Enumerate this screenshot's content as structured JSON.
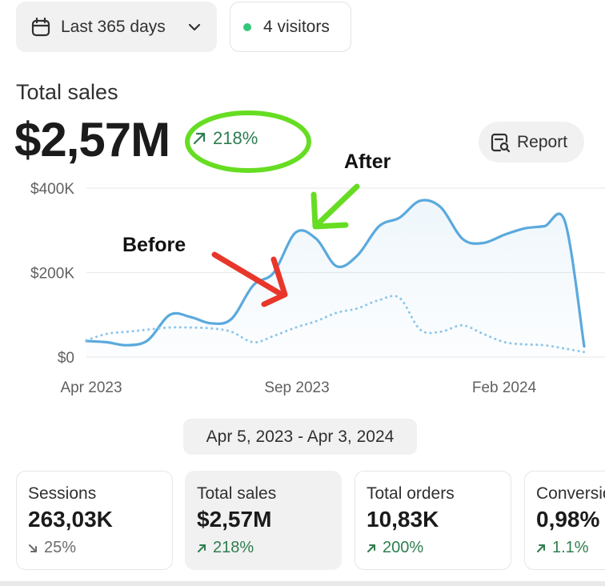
{
  "toolbar": {
    "range_label": "Last 365 days",
    "visitors_label": "4 visitors",
    "visitors_dot_color": "#34c77b"
  },
  "header": {
    "title": "Total sales",
    "value": "$2,57M",
    "change": "218%",
    "change_direction": "up",
    "report_label": "Report"
  },
  "annotations": {
    "after": "After",
    "before": "Before",
    "colors": {
      "after_arrow": "#66dd22",
      "before_arrow": "#e8372a",
      "ring": "#66dd22"
    }
  },
  "chart_data": {
    "type": "line",
    "ylim": [
      0,
      400000
    ],
    "yticks": [
      "$400K",
      "$200K",
      "$0"
    ],
    "xticks": [
      "Apr 2023",
      "Sep 2023",
      "Feb 2024"
    ],
    "x": [
      "2023-04-05",
      "2023-04-20",
      "2023-05-05",
      "2023-05-20",
      "2023-06-05",
      "2023-06-20",
      "2023-07-05",
      "2023-07-20",
      "2023-08-05",
      "2023-08-20",
      "2023-09-05",
      "2023-09-20",
      "2023-10-05",
      "2023-10-20",
      "2023-11-05",
      "2023-11-20",
      "2023-12-05",
      "2023-12-20",
      "2024-01-05",
      "2024-01-20",
      "2024-02-05",
      "2024-02-20",
      "2024-03-05",
      "2024-03-20",
      "2024-04-03"
    ],
    "series": [
      {
        "style": "solid",
        "color": "#5aa9dd",
        "values": [
          38000,
          35000,
          28000,
          40000,
          100000,
          95000,
          80000,
          90000,
          170000,
          200000,
          295000,
          280000,
          215000,
          240000,
          310000,
          330000,
          370000,
          355000,
          280000,
          270000,
          290000,
          305000,
          310000,
          320000,
          25000
        ]
      },
      {
        "style": "dotted",
        "color": "#8cc6ea",
        "values": [
          40000,
          55000,
          60000,
          65000,
          70000,
          70000,
          68000,
          60000,
          35000,
          50000,
          70000,
          85000,
          105000,
          115000,
          135000,
          140000,
          65000,
          60000,
          75000,
          55000,
          35000,
          30000,
          28000,
          20000,
          12000
        ]
      }
    ],
    "grid": true
  },
  "footer": {
    "date_range": "Apr 5, 2023 - Apr 3, 2024"
  },
  "metrics": [
    {
      "label": "Sessions",
      "value": "263,03K",
      "change": "25%",
      "direction": "down"
    },
    {
      "label": "Total sales",
      "value": "$2,57M",
      "change": "218%",
      "direction": "up"
    },
    {
      "label": "Total orders",
      "value": "10,83K",
      "change": "200%",
      "direction": "up"
    },
    {
      "label": "Conversion rate",
      "value": "0,98%",
      "change": "1.1%",
      "direction": "up"
    }
  ]
}
